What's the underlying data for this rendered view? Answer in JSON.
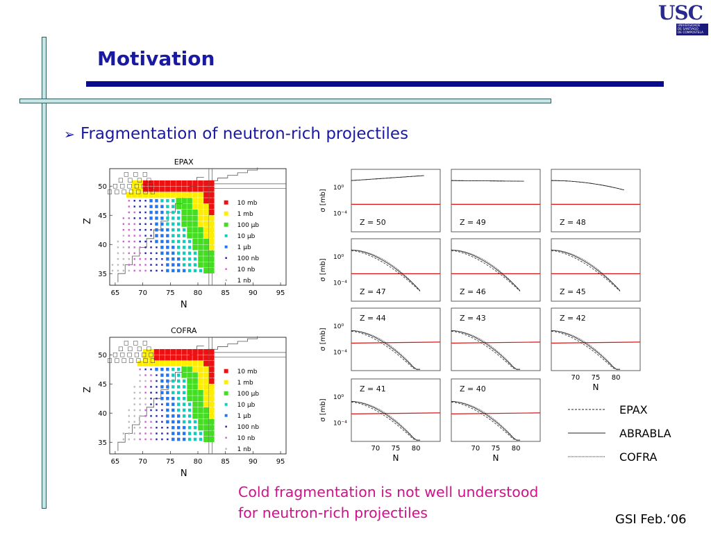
{
  "slide": {
    "title": "Motivation",
    "bullet": "Fragmentation of neutron-rich projectiles",
    "bullet_marker": "➢",
    "caption_line1": "Cold fragmentation is not well understood",
    "caption_line2": "for neutron-rich projectiles",
    "footer": "GSI Feb.‘06"
  },
  "logo": {
    "text": "USC",
    "sub1": "UNIVERSIDADE",
    "sub2": "DE SANTIAGO",
    "sub3": "DE COMPOSTELA"
  },
  "chart_data": [
    {
      "type": "heatmap",
      "title": "EPAX",
      "xlabel": "N",
      "ylabel": "Z",
      "xticks": [
        65,
        70,
        75,
        80,
        85,
        90,
        95
      ],
      "yticks": [
        35,
        40,
        45,
        50
      ],
      "xlim": [
        64,
        96
      ],
      "ylim": [
        33,
        53
      ],
      "legend": [
        "10 mb",
        "1 mb",
        "100 µb",
        "10 µb",
        "1 µb",
        "100 nb",
        "10 nb",
        "1 nb"
      ],
      "legend_colors": [
        "#ee1111",
        "#ffee00",
        "#44dd22",
        "#11ccbb",
        "#2277ee",
        "#2222aa",
        "#cc66cc",
        "#bbbbbb"
      ]
    },
    {
      "type": "heatmap",
      "title": "COFRA",
      "xlabel": "N",
      "ylabel": "Z",
      "xticks": [
        65,
        70,
        75,
        80,
        85,
        90,
        95
      ],
      "yticks": [
        35,
        40,
        45,
        50
      ],
      "xlim": [
        64,
        96
      ],
      "ylim": [
        33,
        53
      ],
      "legend": [
        "10 mb",
        "1 mb",
        "100 µb",
        "10 µb",
        "1 µb",
        "100 nb",
        "10 nb",
        "1 nb"
      ],
      "legend_colors": [
        "#ee1111",
        "#ffee00",
        "#44dd22",
        "#11ccbb",
        "#2277ee",
        "#2222aa",
        "#cc66cc",
        "#bbbbbb"
      ]
    },
    {
      "type": "line",
      "ylabel": "σ [mb]",
      "xlabel": "N",
      "xticks": [
        70,
        75,
        80
      ],
      "yticks": [
        "10⁰",
        "10⁻⁴"
      ],
      "panels": [
        "Z = 50",
        "Z = 49",
        "Z = 48",
        "Z = 47",
        "Z = 46",
        "Z = 45",
        "Z = 44",
        "Z = 43",
        "Z = 42",
        "Z = 41",
        "Z = 40"
      ],
      "series": [
        {
          "name": "EPAX"
        },
        {
          "name": "ABRABLA"
        },
        {
          "name": "COFRA"
        }
      ]
    }
  ]
}
